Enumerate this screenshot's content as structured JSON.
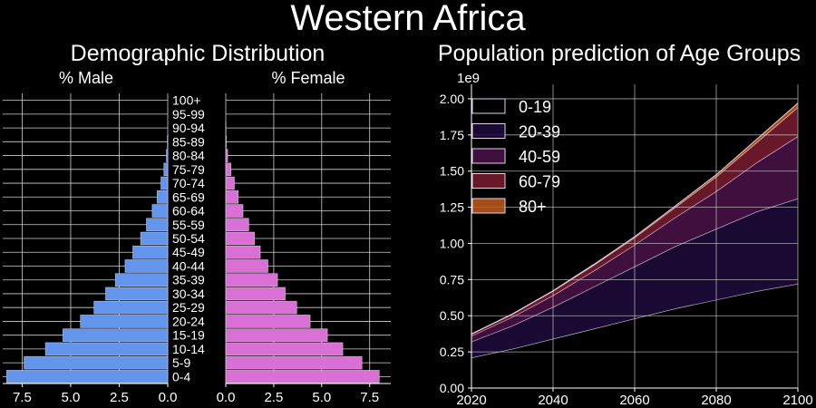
{
  "suptitle": "Western Africa",
  "chart_data": [
    {
      "type": "bar",
      "orientation": "horizontal",
      "title": "Demographic Distribution",
      "panel": "male",
      "axis_title": "% Male",
      "color": "#6495ED",
      "categories": [
        "0-4",
        "5-9",
        "10-14",
        "15-19",
        "20-24",
        "25-29",
        "30-34",
        "35-39",
        "40-44",
        "45-49",
        "50-54",
        "55-59",
        "60-64",
        "65-69",
        "70-74",
        "75-79",
        "80-84",
        "85-89",
        "90-94",
        "95-99",
        "100+"
      ],
      "values": [
        8.3,
        7.4,
        6.3,
        5.4,
        4.5,
        3.8,
        3.2,
        2.7,
        2.2,
        1.8,
        1.4,
        1.1,
        0.8,
        0.55,
        0.35,
        0.2,
        0.07,
        0.02,
        0.0,
        0.0,
        0.0
      ],
      "xlim": [
        8.5,
        0
      ],
      "xticks": [
        7.5,
        5.0,
        2.5,
        0.0
      ],
      "xtick_labels": [
        "7.5",
        "5.0",
        "2.5",
        "0.0"
      ],
      "grid": true
    },
    {
      "type": "bar",
      "orientation": "horizontal",
      "panel": "female",
      "axis_title": "% Female",
      "color": "#DA70D6",
      "categories": [
        "0-4",
        "5-9",
        "10-14",
        "15-19",
        "20-24",
        "25-29",
        "30-34",
        "35-39",
        "40-44",
        "45-49",
        "50-54",
        "55-59",
        "60-64",
        "65-69",
        "70-74",
        "75-79",
        "80-84",
        "85-89",
        "90-94",
        "95-99",
        "100+"
      ],
      "values": [
        8.0,
        7.1,
        6.1,
        5.3,
        4.4,
        3.7,
        3.1,
        2.7,
        2.2,
        1.8,
        1.5,
        1.2,
        0.9,
        0.65,
        0.45,
        0.27,
        0.1,
        0.03,
        0.01,
        0.0,
        0.0
      ],
      "xlim": [
        0,
        8.6
      ],
      "xticks": [
        0.0,
        2.5,
        5.0,
        7.5
      ],
      "xtick_labels": [
        "0.0",
        "2.5",
        "5.0",
        "7.5"
      ],
      "grid": true
    },
    {
      "type": "area",
      "stacked": true,
      "title": "Population prediction of Age Groups",
      "scale_label": "1e9",
      "x": [
        2020,
        2030,
        2040,
        2050,
        2060,
        2070,
        2080,
        2090,
        2100
      ],
      "xlim": [
        2020,
        2100
      ],
      "ylim": [
        0,
        2.1
      ],
      "xticks": [
        2020,
        2040,
        2060,
        2080,
        2100
      ],
      "xtick_labels": [
        "2020",
        "2040",
        "2060",
        "2080",
        "2100"
      ],
      "yticks": [
        0.0,
        0.25,
        0.5,
        0.75,
        1.0,
        1.25,
        1.5,
        1.75,
        2.0
      ],
      "ytick_labels": [
        "0.00",
        "0.25",
        "0.50",
        "0.75",
        "1.00",
        "1.25",
        "1.50",
        "1.75",
        "2.00"
      ],
      "legend_position": "top-left",
      "grid": true,
      "series": [
        {
          "name": "0-19",
          "color": "#000000",
          "values": [
            0.21,
            0.27,
            0.34,
            0.41,
            0.48,
            0.55,
            0.61,
            0.67,
            0.72
          ]
        },
        {
          "name": "20-39",
          "color": "#1e0a3c",
          "values": [
            0.11,
            0.16,
            0.22,
            0.29,
            0.36,
            0.43,
            0.49,
            0.55,
            0.59
          ]
        },
        {
          "name": "40-59",
          "color": "#4a1248",
          "values": [
            0.04,
            0.06,
            0.08,
            0.11,
            0.15,
            0.2,
            0.26,
            0.34,
            0.43
          ]
        },
        {
          "name": "60-79",
          "color": "#7a1c30",
          "values": [
            0.013,
            0.02,
            0.03,
            0.04,
            0.05,
            0.07,
            0.1,
            0.14,
            0.2
          ]
        },
        {
          "name": "80+",
          "color": "#c25a1c",
          "values": [
            0.001,
            0.002,
            0.003,
            0.005,
            0.007,
            0.01,
            0.015,
            0.022,
            0.03
          ]
        }
      ]
    }
  ]
}
